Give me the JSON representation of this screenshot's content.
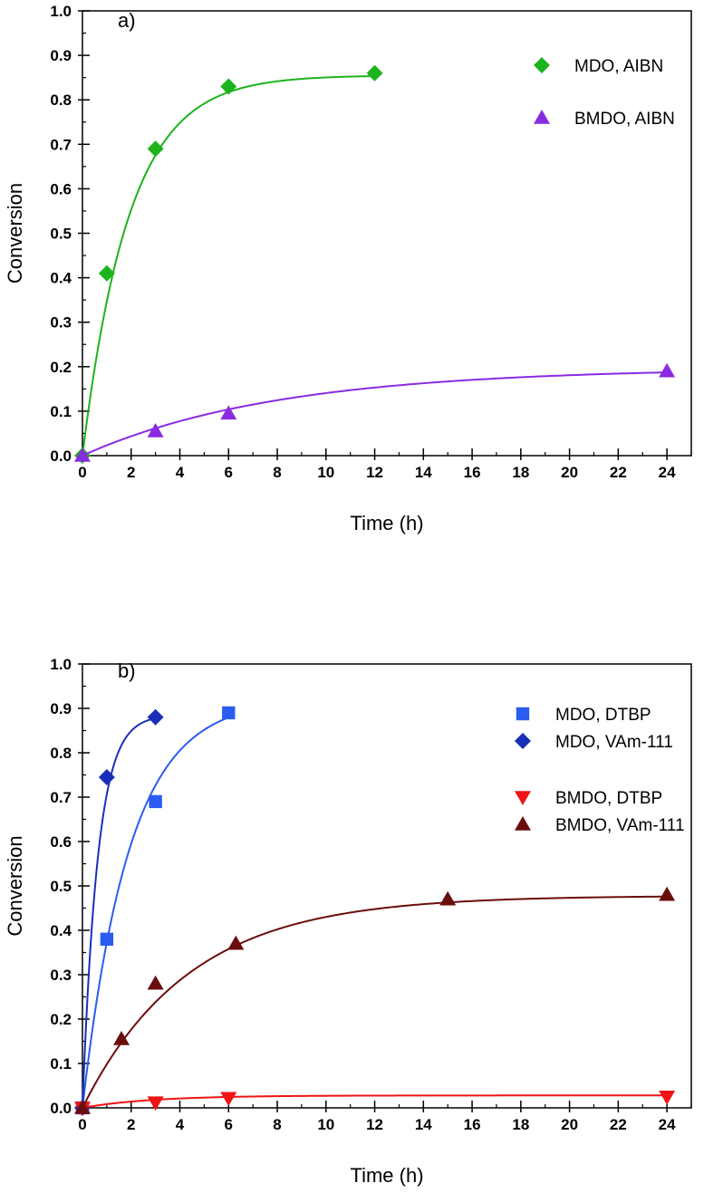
{
  "chart_data": [
    {
      "type": "scatter",
      "panel_label": "a)",
      "xlabel": "Time (h)",
      "ylabel": "Conversion",
      "xlim": [
        0,
        25
      ],
      "ylim": [
        0,
        1.0
      ],
      "xticks": [
        0,
        2,
        4,
        6,
        8,
        10,
        12,
        14,
        16,
        18,
        20,
        22,
        24
      ],
      "yticks": [
        0.0,
        0.1,
        0.2,
        0.3,
        0.4,
        0.5,
        0.6,
        0.7,
        0.8,
        0.9,
        1.0
      ],
      "legend_position": "top-right",
      "series": [
        {
          "name": "MDO, AIBN",
          "marker": "diamond",
          "color": "#1db31d",
          "x": [
            0,
            1,
            3,
            6,
            12
          ],
          "y": [
            0.0,
            0.41,
            0.69,
            0.83,
            0.86
          ],
          "fit": {
            "a": 0.855,
            "k": 0.52
          }
        },
        {
          "name": "BMDO, AIBN",
          "marker": "triangle-up",
          "color": "#8a2be2",
          "x": [
            0,
            3,
            6,
            24
          ],
          "y": [
            0.0,
            0.055,
            0.095,
            0.19
          ],
          "fit": {
            "a": 0.197,
            "k": 0.125
          }
        }
      ]
    },
    {
      "type": "scatter",
      "panel_label": "b)",
      "xlabel": "Time (h)",
      "ylabel": "Conversion",
      "xlim": [
        0,
        25
      ],
      "ylim": [
        0,
        1.0
      ],
      "xticks": [
        0,
        2,
        4,
        6,
        8,
        10,
        12,
        14,
        16,
        18,
        20,
        22,
        24
      ],
      "yticks": [
        0.0,
        0.1,
        0.2,
        0.3,
        0.4,
        0.5,
        0.6,
        0.7,
        0.8,
        0.9,
        1.0
      ],
      "legend_position": "top-right",
      "series": [
        {
          "name": "MDO, DTBP",
          "marker": "square",
          "color": "#2b5cf0",
          "x": [
            0,
            1,
            3,
            6
          ],
          "y": [
            0.0,
            0.38,
            0.69,
            0.89
          ],
          "fit": {
            "a": 0.92,
            "k": 0.52
          }
        },
        {
          "name": "MDO, VAm-111",
          "marker": "diamond",
          "color": "#1a2fb8",
          "x": [
            0,
            1,
            3
          ],
          "y": [
            0.0,
            0.745,
            0.88
          ],
          "fit": {
            "a": 0.885,
            "k": 1.6
          }
        },
        {
          "name": "BMDO, DTBP",
          "marker": "triangle-down",
          "color": "#f01414",
          "x": [
            0,
            3,
            6,
            24
          ],
          "y": [
            0.0,
            0.012,
            0.022,
            0.025
          ],
          "fit": {
            "a": 0.028,
            "k": 0.35
          }
        },
        {
          "name": "BMDO, VAm-111",
          "marker": "triangle-up",
          "color": "#6b0d0d",
          "x": [
            0,
            1.6,
            3,
            6.3,
            15,
            24
          ],
          "y": [
            0.0,
            0.155,
            0.28,
            0.37,
            0.47,
            0.48
          ],
          "fit": {
            "a": 0.478,
            "k": 0.23
          }
        }
      ]
    }
  ]
}
